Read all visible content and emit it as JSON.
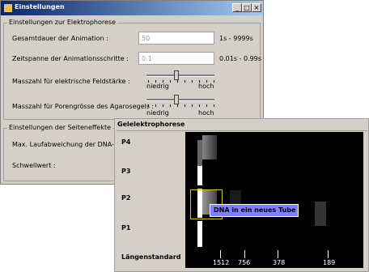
{
  "settings_window": {
    "title": "Einstellungen",
    "group_electrophoresis": {
      "title": "Einstellungen zur Elektrophorese",
      "rows": [
        {
          "label": "Gesamtdauer der Animation :",
          "value": "50",
          "range": "1s - 9999s"
        },
        {
          "label": "Zeitspanne der Animationsschritte :",
          "value": "0.1",
          "range": "0.01s - 0.99s"
        }
      ],
      "sliders": [
        {
          "label": "Masszahl für elektrische Feldstärke :",
          "low": "niedrig",
          "high": "hoch"
        },
        {
          "label": "Masszahl für Porengrösse des Agarosegels :",
          "low": "niedrig",
          "high": "hoch"
        }
      ]
    },
    "group_side_effects": {
      "title": "Einstellungen der Seiteneffekte",
      "rows": [
        "Max. Laufabweichung der DNA-Strän",
        "Schwellwert :"
      ]
    }
  },
  "gel_window": {
    "title": "Gelelektrophorese",
    "lanes": [
      "P4",
      "P3",
      "P2",
      "P1",
      "Längenstandard"
    ],
    "tooltip": "DNA in ein neues Tube",
    "scale_labels": [
      "1512",
      "756",
      "378",
      "189"
    ]
  }
}
